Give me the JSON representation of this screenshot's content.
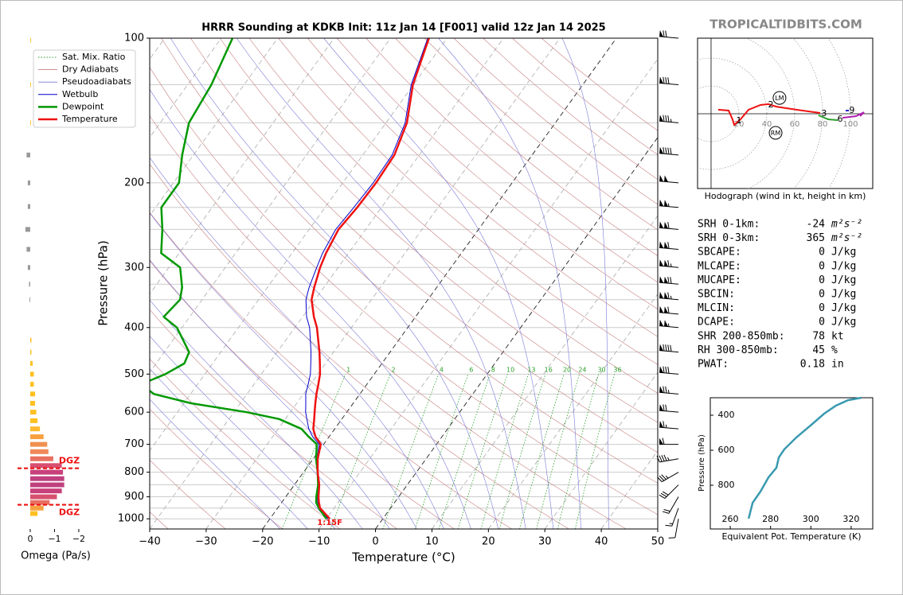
{
  "watermark": "TROPICALTIDBITS.COM",
  "chart_data": [
    {
      "type": "skewt",
      "title": "HRRR Sounding at KDKB Init: 11z Jan 14 [F001] valid 12z Jan 14 2025",
      "x_label": "Temperature (°C)",
      "y_label": "Pressure (hPa)",
      "log_scale": true,
      "xlim": [
        -40,
        50
      ],
      "ylim": [
        100,
        1050
      ],
      "xticks": [
        {
          "value": -40,
          "label": "−40"
        },
        {
          "value": -30,
          "label": "−30"
        },
        {
          "value": -20,
          "label": "−20"
        },
        {
          "value": -10,
          "label": "−10"
        },
        0,
        10,
        20,
        30,
        40,
        50
      ],
      "yticks": [
        100,
        200,
        300,
        400,
        500,
        600,
        700,
        800,
        900,
        1000
      ],
      "grid_levels": [
        100,
        125,
        150,
        175,
        200,
        225,
        250,
        275,
        300,
        325,
        350,
        400,
        450,
        500,
        550,
        600,
        650,
        700,
        750,
        800,
        850,
        900,
        950,
        1000
      ],
      "isotherms": [
        -120,
        -110,
        -100,
        -90,
        -80,
        -70,
        -60,
        -50,
        -40,
        -30,
        -20,
        -10,
        0,
        10,
        20,
        30,
        40
      ],
      "highlight_isotherms": [
        -20,
        0
      ],
      "guides": [
        {
          "name": "Sat. Mix. Ratio",
          "color": "#2ca02c",
          "values": [
            1,
            2,
            4,
            6,
            8,
            10,
            13,
            16,
            20,
            24,
            30,
            36
          ]
        },
        {
          "name": "Dry Adiabats",
          "color": "#c88080",
          "values": [
            -50,
            -40,
            -30,
            -20,
            -10,
            0,
            10,
            20,
            30,
            40,
            50,
            60,
            70,
            80,
            90,
            100,
            110,
            120,
            130,
            140,
            150,
            160,
            170,
            180,
            190
          ]
        },
        {
          "name": "Pseudoadiabats",
          "color": "#7a7ad8",
          "values": [
            -20,
            -15,
            -10,
            -5,
            0,
            5,
            10,
            15,
            20,
            25,
            30,
            35,
            40
          ]
        }
      ],
      "pressure": [
        1000,
        950,
        925,
        900,
        850,
        800,
        750,
        700,
        675,
        650,
        620,
        600,
        575,
        550,
        525,
        500,
        475,
        450,
        400,
        380,
        350,
        330,
        300,
        280,
        250,
        225,
        200,
        175,
        150,
        125,
        100
      ],
      "series": [
        {
          "name": "Wetbulb",
          "color": "#0000cc",
          "width": 1,
          "values": [
            -9.7,
            -12.6,
            -13.6,
            -14.4,
            -15.7,
            -17.5,
            -19.3,
            -20.8,
            -22.9,
            -24.6,
            -26.2,
            -27.3,
            -28.4,
            -29.6,
            -30.4,
            -31.3,
            -32.6,
            -34,
            -37.4,
            -39.3,
            -41.6,
            -42.6,
            -43.8,
            -44.6,
            -45.3,
            -44.9,
            -44.6,
            -44.8,
            -46.6,
            -50.4,
            -53.4
          ]
        },
        {
          "name": "Dewpoint",
          "color": "#009900",
          "width": 2.5,
          "values": [
            -10,
            -12.7,
            -13.9,
            -14.6,
            -15.8,
            -17.5,
            -19.5,
            -21.2,
            -23.6,
            -25.9,
            -31.1,
            -37.7,
            -48.7,
            -56.5,
            -60,
            -57,
            -55,
            -55.6,
            -60.9,
            -64.6,
            -63.9,
            -65.1,
            -68,
            -73.2,
            -76,
            -79,
            -79,
            -82,
            -84.9,
            -85.8,
            -88
          ]
        },
        {
          "name": "Temperature",
          "color": "#ee1111",
          "width": 2.5,
          "values": [
            -9.4,
            -12.5,
            -13.4,
            -14.2,
            -15.6,
            -17.5,
            -19.2,
            -20.5,
            -22.4,
            -23.8,
            -24.9,
            -25.7,
            -26.7,
            -27.7,
            -28.6,
            -29.6,
            -31,
            -32.5,
            -36.1,
            -38,
            -40.6,
            -41.7,
            -43.2,
            -44,
            -44.8,
            -44.3,
            -44.1,
            -44.4,
            -46.3,
            -50.1,
            -53.2
          ]
        }
      ],
      "surface_label": "1:15F",
      "winds": {
        "pressure": [
          100,
          125,
          150,
          175,
          200,
          225,
          250,
          275,
          300,
          325,
          350,
          375,
          400,
          450,
          500,
          550,
          600,
          650,
          700,
          750,
          800,
          850,
          900,
          950,
          1000
        ],
        "speed": [
          70,
          80,
          85,
          90,
          100,
          105,
          110,
          110,
          115,
          120,
          115,
          110,
          105,
          90,
          80,
          75,
          70,
          65,
          60,
          45,
          35,
          30,
          20,
          15,
          10
        ],
        "direction": [
          275,
          275,
          275,
          275,
          275,
          275,
          275,
          275,
          275,
          275,
          275,
          275,
          275,
          275,
          275,
          275,
          275,
          275,
          270,
          260,
          240,
          225,
          210,
          200,
          190
        ]
      }
    },
    {
      "type": "bar",
      "x_label": "Omega (Pa/s)",
      "xlim": [
        0.5,
        -2.5
      ],
      "ylim": [
        100,
        1050
      ],
      "log_scale": true,
      "xticks": [
        0,
        {
          "value": -1,
          "label": "−1"
        },
        {
          "value": -2,
          "label": "−2"
        }
      ],
      "pressure": [
        101,
        125,
        150,
        175,
        200,
        224,
        250,
        275,
        300,
        325,
        350,
        425,
        450,
        475,
        500,
        525,
        550,
        575,
        600,
        625,
        650,
        675,
        700,
        725,
        750,
        775,
        800,
        825,
        850,
        875,
        900,
        925,
        950,
        975
      ],
      "values": [
        -0.03,
        -0.03,
        -0.03,
        0.15,
        0.1,
        0.1,
        0.2,
        0.15,
        0.1,
        0.05,
        0.03,
        -0.05,
        -0.05,
        -0.1,
        -0.15,
        -0.15,
        -0.2,
        -0.2,
        -0.25,
        -0.3,
        -0.4,
        -0.55,
        -0.7,
        -0.75,
        -0.95,
        -1.3,
        -1.35,
        -1.4,
        -1.4,
        -1.3,
        -1.1,
        -0.8,
        -0.55,
        -0.3
      ],
      "colors": [
        "#ffc020",
        "#ffc020",
        "#ffc020",
        "#999999",
        "#999999",
        "#999999",
        "#999999",
        "#999999",
        "#999999",
        "#999999",
        "#999999",
        "#ffc020",
        "#ffc020",
        "#ffc020",
        "#ffc020",
        "#ffc020",
        "#ffc020",
        "#ffc020",
        "#ffc020",
        "#ffc020",
        "#ffb830",
        "#f8a040",
        "#f09050",
        "#f08858",
        "#e87060",
        "#d85070",
        "#c8407a",
        "#c0407e",
        "#c0407e",
        "#c8407a",
        "#d85070",
        "#e87060",
        "#f8a040",
        "#ffc020"
      ],
      "annotations": [
        {
          "text": "DGZ",
          "pressure": 785
        },
        {
          "text": "DGZ",
          "pressure": 935
        }
      ]
    },
    {
      "type": "hodograph",
      "caption": "Hodograph (wind in kt, height in km)",
      "xlim": [
        -9.7,
        116
      ],
      "ylim": [
        -53.7,
        54.3
      ],
      "rings": [
        20,
        40,
        60,
        80,
        100
      ],
      "series": [
        {
          "color": "#ee1111",
          "u": [
            5.1,
            12.6,
            15.4,
            16.6,
            21.1,
            26.9,
            35.4,
            41.1,
            46.9,
            61.1,
            78.3
          ],
          "v": [
            2.9,
            2.3,
            -4,
            -8,
            -4,
            2.9,
            6.3,
            6.9,
            5.1,
            2.9,
            0.6
          ]
        },
        {
          "color": "#2ca02c",
          "u": [
            77.1,
            84,
            90.9
          ],
          "v": [
            -1.1,
            -4,
            -4.6
          ]
        },
        {
          "color": "#b020b0",
          "u": [
            94.3,
            104,
            109.7,
            106.9
          ],
          "v": [
            -2.9,
            -1.7,
            1.1,
            -1.7
          ]
        },
        {
          "color": "#2020d0",
          "u": [
            96.6,
            98.9
          ],
          "v": [
            2.3,
            2.3
          ]
        }
      ],
      "height_marks": {
        "heights": [
          1,
          2,
          3,
          6,
          9
        ],
        "u": [
          20,
          42.9,
          81.1,
          92.6,
          101.1
        ],
        "v": [
          -5.1,
          6.3,
          0,
          -4,
          2.3
        ]
      },
      "storm_motion": [
        {
          "label": "LM",
          "u": 49.1,
          "v": 11.4
        },
        {
          "label": "RM",
          "u": 46.3,
          "v": -13.7
        }
      ]
    },
    {
      "type": "line",
      "x_label": "Equivalent Pot. Temperature (K)",
      "y_label": "Pressure (hPa)",
      "xlim": [
        250.1,
        330.7
      ],
      "ylim": [
        300,
        1050
      ],
      "xticks": [
        260,
        280,
        300,
        320
      ],
      "yticks": [
        400,
        600,
        800
      ],
      "color": "#3a9ab0",
      "x": [
        269.1,
        271.1,
        275,
        279,
        282.9,
        284.1,
        286.8,
        292.8,
        300.7,
        306.6,
        312.5,
        318.4,
        325.1
      ],
      "values": [
        991,
        900,
        836,
        755,
        700,
        641,
        595,
        527,
        450,
        391,
        345,
        314,
        300
      ]
    }
  ],
  "stats": [
    {
      "label": "SRH 0-1km:",
      "value": "-24",
      "unit": "m²s⁻²",
      "color": "#000000"
    },
    {
      "label": "SRH 0-3km:",
      "value": "365",
      "unit": "m²s⁻²",
      "color": "#a020a0"
    },
    {
      "label": "SBCAPE:",
      "value": "0",
      "unit": "J/kg",
      "color": "#000000"
    },
    {
      "label": "MLCAPE:",
      "value": "0",
      "unit": "J/kg",
      "color": "#000000"
    },
    {
      "label": "MUCAPE:",
      "value": "0",
      "unit": "J/kg",
      "color": "#000000"
    },
    {
      "label": "SBCIN:",
      "value": "0",
      "unit": "J/kg",
      "color": "#000000"
    },
    {
      "label": "MLCIN:",
      "value": "0",
      "unit": "J/kg",
      "color": "#000000"
    },
    {
      "label": "DCAPE:",
      "value": "0",
      "unit": "J/kg",
      "color": "#000000"
    },
    {
      "label": "SHR 200-850mb:",
      "value": "78",
      "unit": "kt",
      "color": "#a02020"
    },
    {
      "label": "RH 300-850mb:",
      "value": "45",
      "unit": "%",
      "color": "#8b5a00"
    },
    {
      "label": "PWAT:",
      "value": "0.18",
      "unit": "in",
      "color": "#000000"
    }
  ]
}
